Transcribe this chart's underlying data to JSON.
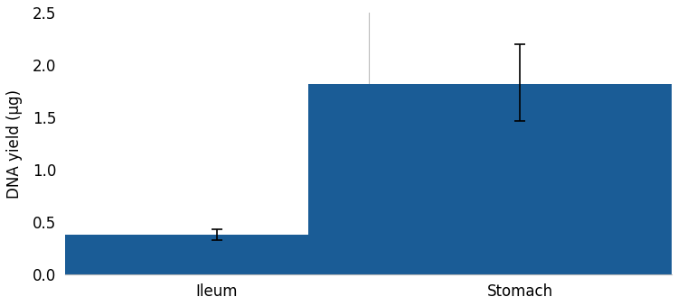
{
  "categories": [
    "Ileum",
    "Stomach"
  ],
  "values": [
    0.38,
    1.82
  ],
  "errors_upper": [
    0.05,
    0.38
  ],
  "errors_lower": [
    0.05,
    0.35
  ],
  "bar_color": "#1a5c96",
  "ylabel": "DNA yield (µg)",
  "ylim": [
    0,
    2.5
  ],
  "yticks": [
    0.0,
    0.5,
    1.0,
    1.5,
    2.0,
    2.5
  ],
  "bar_width": 0.7,
  "figsize": [
    7.5,
    3.39
  ],
  "dpi": 100,
  "ecolor": "black",
  "elinewidth": 1.2,
  "capsize": 4,
  "ylabel_fontsize": 12,
  "tick_fontsize": 12,
  "x_positions": [
    0.25,
    0.75
  ],
  "xlim": [
    0,
    1
  ]
}
